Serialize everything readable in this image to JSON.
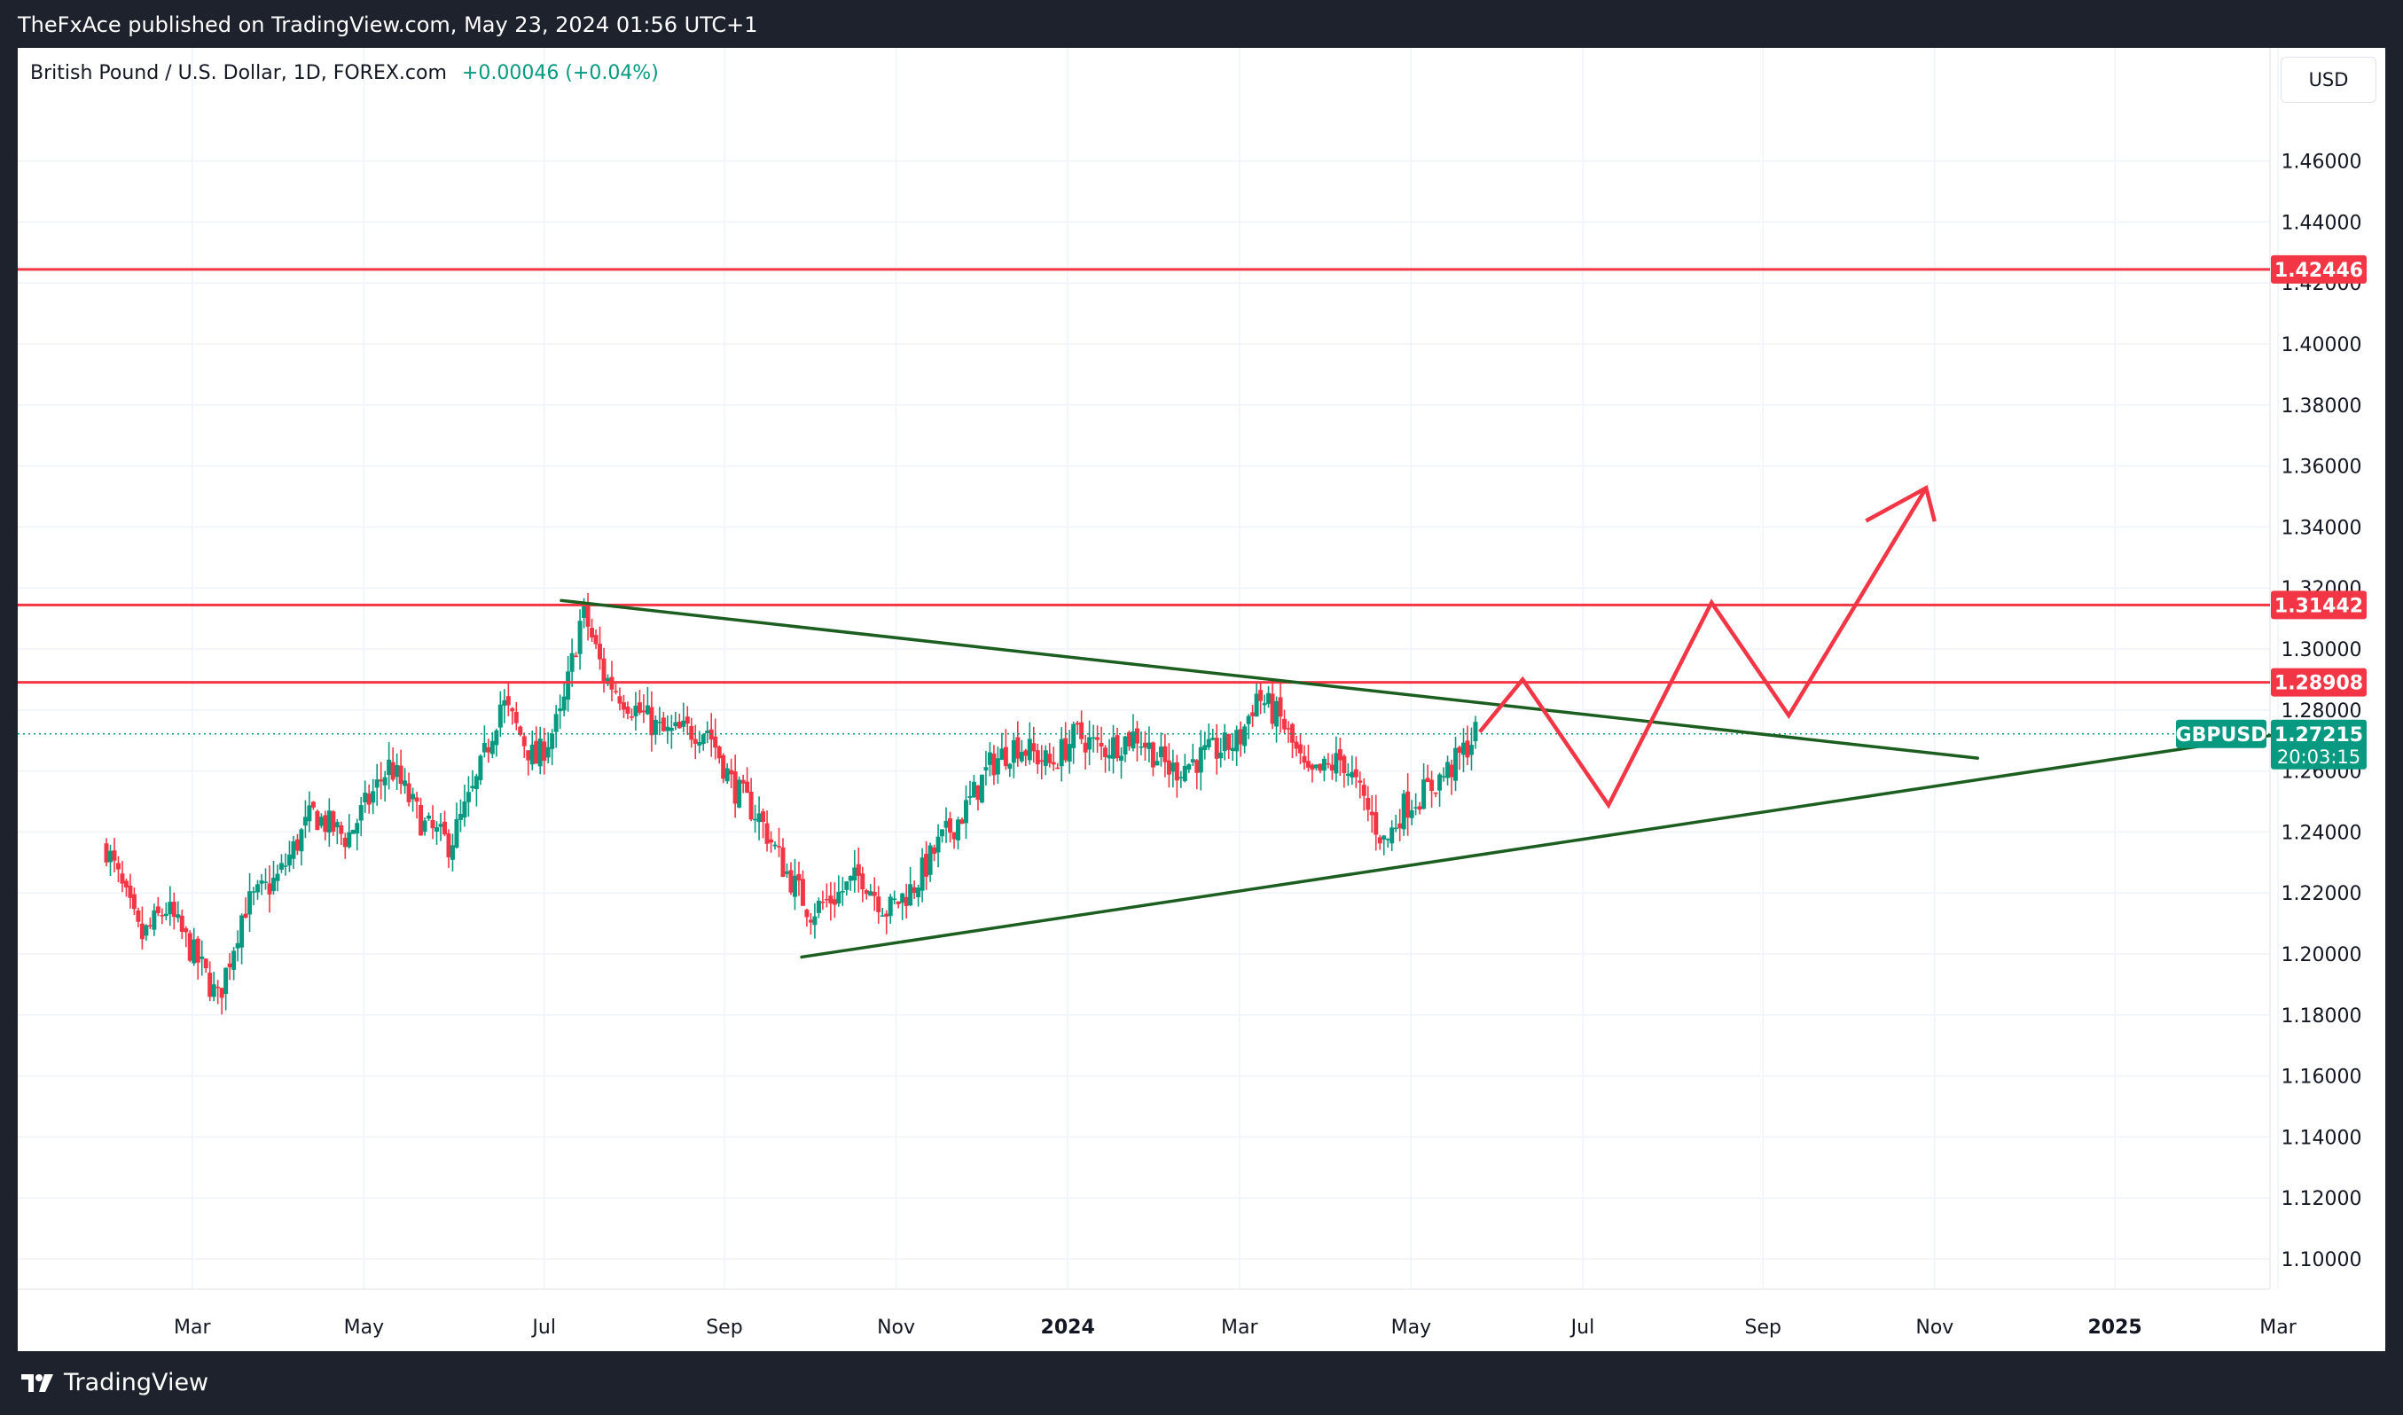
{
  "header": {
    "published": "TheFxAce published on TradingView.com, May 23, 2024 01:56 UTC+1"
  },
  "legend": {
    "symbol": "British Pound / U.S. Dollar, 1D, FOREX.com",
    "change": "+0.00046 (+0.04%)"
  },
  "currency_button": "USD",
  "footer": {
    "brand": "TradingView"
  },
  "colors": {
    "up": "#089981",
    "down": "#f23645",
    "level": "#f23645",
    "trend": "#1b5e20",
    "projection": "#f23645"
  },
  "chart_data": {
    "type": "candlestick",
    "title": "British Pound / U.S. Dollar, 1D, FOREX.com",
    "symbol": "GBPUSD",
    "last_price": "1.27215",
    "last_price_value": 1.27215,
    "countdown": "20:03:15",
    "ylim": [
      1.08,
      1.48
    ],
    "y_ticks": [
      "1.10000",
      "1.12000",
      "1.14000",
      "1.16000",
      "1.18000",
      "1.20000",
      "1.22000",
      "1.24000",
      "1.26000",
      "1.28000",
      "1.30000",
      "1.32000",
      "1.34000",
      "1.36000",
      "1.38000",
      "1.40000",
      "1.42000",
      "1.44000",
      "1.46000"
    ],
    "x_range": [
      0,
      30
    ],
    "x_ticks": [
      {
        "label": "Mar",
        "t": 1.0,
        "bold": false
      },
      {
        "label": "May",
        "t": 3.0,
        "bold": false
      },
      {
        "label": "Jul",
        "t": 5.1,
        "bold": false
      },
      {
        "label": "Sep",
        "t": 7.2,
        "bold": false
      },
      {
        "label": "Nov",
        "t": 9.2,
        "bold": false
      },
      {
        "label": "2024",
        "t": 11.2,
        "bold": true
      },
      {
        "label": "Mar",
        "t": 13.2,
        "bold": false
      },
      {
        "label": "May",
        "t": 15.2,
        "bold": false
      },
      {
        "label": "Jul",
        "t": 17.2,
        "bold": false
      },
      {
        "label": "Sep",
        "t": 19.3,
        "bold": false
      },
      {
        "label": "Nov",
        "t": 21.3,
        "bold": false
      },
      {
        "label": "2025",
        "t": 23.4,
        "bold": true
      },
      {
        "label": "Mar",
        "t": 25.3,
        "bold": false
      }
    ],
    "horizontal_levels": [
      {
        "label": "1.42446",
        "value": 1.42446
      },
      {
        "label": "1.31442",
        "value": 1.31442
      },
      {
        "label": "1.28908",
        "value": 1.28908
      }
    ],
    "trendlines": [
      {
        "name": "upper-trendline",
        "points": [
          [
            5.3,
            1.3159
          ],
          [
            21.8,
            1.2642
          ]
        ]
      },
      {
        "name": "lower-trendline",
        "points": [
          [
            8.1,
            1.199
          ],
          [
            25.4,
            1.2724
          ]
        ]
      }
    ],
    "projection_path": [
      [
        16.0,
        1.2728
      ],
      [
        16.5,
        1.29
      ],
      [
        17.5,
        1.2488
      ],
      [
        18.7,
        1.3152
      ],
      [
        19.6,
        1.2782
      ],
      [
        21.2,
        1.3528
      ]
    ],
    "projection_arrowhead": [
      [
        20.5,
        1.342
      ],
      [
        21.2,
        1.3528
      ],
      [
        21.3,
        1.3418
      ]
    ],
    "price_path": [
      [
        0.0,
        1.235
      ],
      [
        0.4,
        1.205
      ],
      [
        0.7,
        1.215
      ],
      [
        1.1,
        1.196
      ],
      [
        1.3,
        1.185
      ],
      [
        1.6,
        1.215
      ],
      [
        2.0,
        1.225
      ],
      [
        2.4,
        1.246
      ],
      [
        2.8,
        1.238
      ],
      [
        3.3,
        1.262
      ],
      [
        3.7,
        1.242
      ],
      [
        4.0,
        1.236
      ],
      [
        4.3,
        1.255
      ],
      [
        4.6,
        1.283
      ],
      [
        5.0,
        1.263
      ],
      [
        5.3,
        1.278
      ],
      [
        5.55,
        1.313
      ],
      [
        5.8,
        1.291
      ],
      [
        6.1,
        1.282
      ],
      [
        6.5,
        1.272
      ],
      [
        7.0,
        1.274
      ],
      [
        7.3,
        1.255
      ],
      [
        7.6,
        1.245
      ],
      [
        7.9,
        1.228
      ],
      [
        8.2,
        1.214
      ],
      [
        8.5,
        1.219
      ],
      [
        8.8,
        1.226
      ],
      [
        9.1,
        1.214
      ],
      [
        9.4,
        1.222
      ],
      [
        9.7,
        1.236
      ],
      [
        10.0,
        1.247
      ],
      [
        10.3,
        1.262
      ],
      [
        10.6,
        1.269
      ],
      [
        11.0,
        1.262
      ],
      [
        11.3,
        1.272
      ],
      [
        11.6,
        1.267
      ],
      [
        12.0,
        1.272
      ],
      [
        12.4,
        1.26
      ],
      [
        12.8,
        1.265
      ],
      [
        13.2,
        1.27
      ],
      [
        13.4,
        1.285
      ],
      [
        13.7,
        1.276
      ],
      [
        14.0,
        1.257
      ],
      [
        14.4,
        1.264
      ],
      [
        14.7,
        1.247
      ],
      [
        14.9,
        1.236
      ],
      [
        15.1,
        1.248
      ],
      [
        15.4,
        1.254
      ],
      [
        15.7,
        1.262
      ],
      [
        15.95,
        1.2722
      ]
    ]
  }
}
